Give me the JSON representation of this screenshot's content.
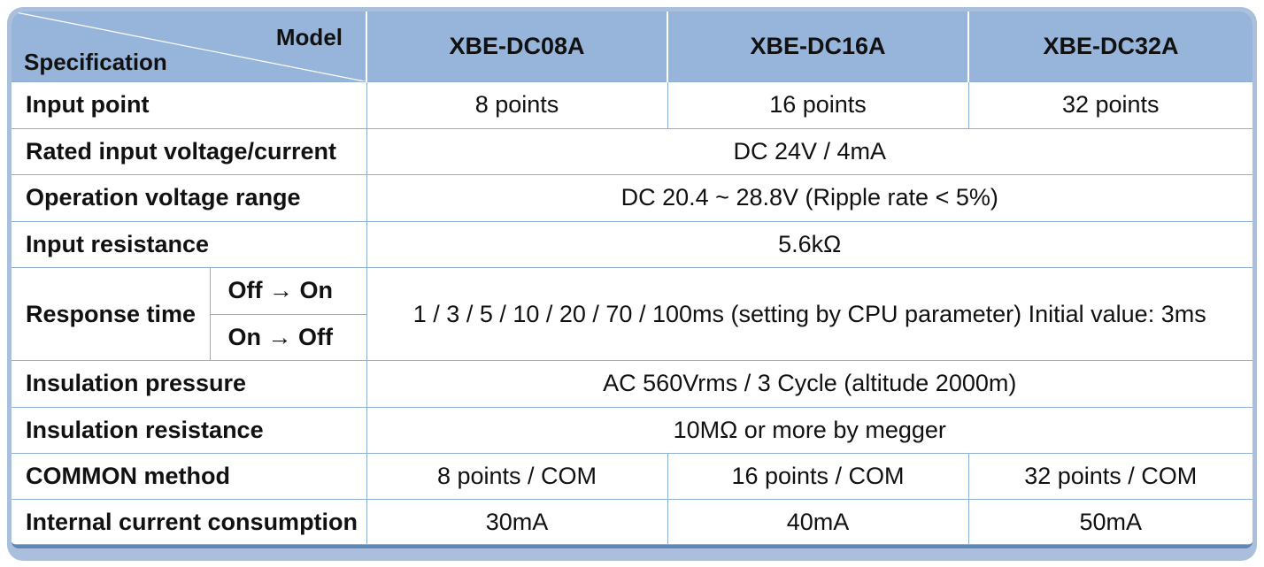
{
  "header": {
    "corner_model": "Model",
    "corner_spec": "Specification",
    "models": [
      "XBE-DC08A",
      "XBE-DC16A",
      "XBE-DC32A"
    ]
  },
  "rows": {
    "input_point": {
      "label": "Input point",
      "values": [
        "8 points",
        "16 points",
        "32 points"
      ]
    },
    "rated_input": {
      "label": "Rated input voltage/current",
      "value": "DC 24V / 4mA"
    },
    "operation_voltage": {
      "label": "Operation voltage range",
      "value": "DC 20.4 ~ 28.8V (Ripple rate < 5%)"
    },
    "input_resistance": {
      "label": "Input resistance",
      "value": "5.6kΩ"
    },
    "response_time": {
      "label": "Response time",
      "sub": [
        "Off → On",
        "On → Off"
      ],
      "value": "1 / 3 / 5 / 10 / 20 / 70 / 100ms (setting by CPU parameter) Initial value: 3ms"
    },
    "insulation_pressure": {
      "label": "Insulation pressure",
      "value": "AC 560Vrms / 3 Cycle (altitude 2000m)"
    },
    "insulation_resistance": {
      "label": "Insulation resistance",
      "value": "10MΩ or more by megger"
    },
    "common_method": {
      "label": "COMMON method",
      "values": [
        "8 points / COM",
        "16 points / COM",
        "32 points / COM"
      ]
    },
    "internal_current": {
      "label": "Internal current consumption",
      "values": [
        "30mA",
        "40mA",
        "50mA"
      ]
    }
  },
  "colors": {
    "header_bg": "#97b5da",
    "frame": "#a9bfdb",
    "grid_line": "#8fb0d6",
    "bottom_bar": "#5f86b8"
  }
}
